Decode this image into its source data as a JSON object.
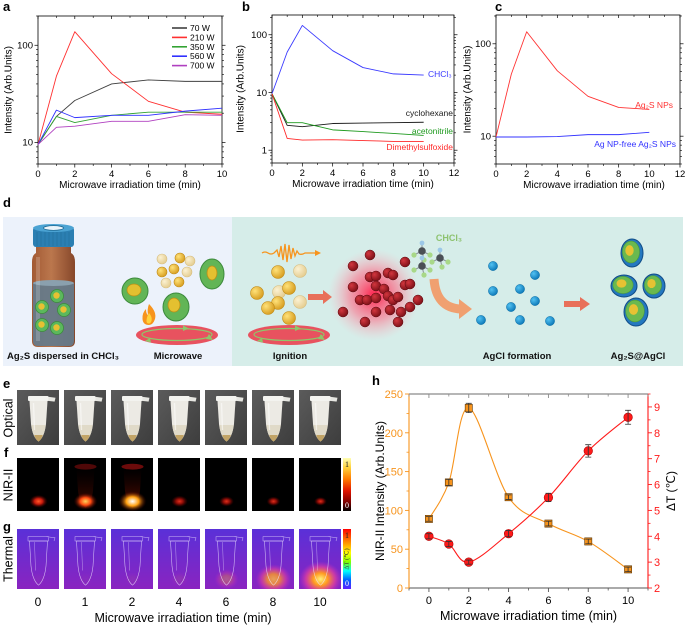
{
  "panel_labels": {
    "a": "a",
    "b": "b",
    "c": "c",
    "d": "d",
    "e": "e",
    "f": "f",
    "g": "g",
    "h": "h"
  },
  "chart_data": [
    {
      "panel": "a",
      "type": "line",
      "x": [
        0,
        1,
        2,
        4,
        6,
        8,
        10
      ],
      "xlabel": "Microwave irradiation time (min)",
      "ylabel": "Intensity (Arb.Units)",
      "xlim": [
        0,
        10
      ],
      "xticks": [
        0,
        2,
        4,
        6,
        8,
        10
      ],
      "yscale": "log",
      "ylim": [
        6,
        200
      ],
      "yticks": [
        10,
        100
      ],
      "grid": false,
      "legend": "top-right",
      "series": [
        {
          "name": "70 W",
          "color": "#404040",
          "values": [
            9.5,
            18.5,
            27,
            40,
            44,
            42.5,
            42.5
          ]
        },
        {
          "name": "210 W",
          "color": "#ff3030",
          "values": [
            9.5,
            48,
            138,
            51,
            26.5,
            20.5,
            19.5
          ]
        },
        {
          "name": "350 W",
          "color": "#33a333",
          "values": [
            9.5,
            18.5,
            16,
            19,
            20.5,
            20.5,
            20.5
          ]
        },
        {
          "name": "560 W",
          "color": "#3030ff",
          "values": [
            9.5,
            21.5,
            18,
            19,
            19,
            21,
            22.5
          ]
        },
        {
          "name": "700 W",
          "color": "#b040c0",
          "values": [
            9.5,
            14.3,
            14.7,
            16.5,
            16.5,
            19.3,
            19
          ]
        }
      ]
    },
    {
      "panel": "b",
      "type": "line",
      "x": [
        0,
        1,
        2,
        4,
        6,
        8,
        10
      ],
      "xlabel": "Microwave irradiation time (min)",
      "ylabel": "Intensity (Arb.Units)",
      "xlim": [
        0,
        12
      ],
      "xticks": [
        0,
        2,
        4,
        6,
        8,
        10,
        12
      ],
      "yscale": "log",
      "ylim": [
        0.6,
        220
      ],
      "yticks": [
        1,
        10,
        100
      ],
      "grid": false,
      "legend": "inline labels at right end of each line",
      "series": [
        {
          "name": "CHCl₃",
          "color": "#3a3aff",
          "values": [
            9.5,
            50,
            145,
            53,
            27,
            21,
            20
          ]
        },
        {
          "name": "cyclohexane",
          "color": "#1a1a1a",
          "values": [
            9.5,
            2.7,
            2.55,
            2.9,
            2.95,
            3.0,
            3.05
          ]
        },
        {
          "name": "acetonitrile",
          "color": "#1f9a1f",
          "values": [
            9.5,
            3.0,
            3.0,
            2.25,
            2.1,
            1.95,
            1.8
          ]
        },
        {
          "name": "Dimethylsulfoxide",
          "color": "#ff2a2a",
          "values": [
            9.5,
            1.6,
            1.5,
            1.52,
            1.47,
            1.42,
            1.42
          ]
        }
      ]
    },
    {
      "panel": "c",
      "type": "line",
      "x": [
        0,
        1,
        2,
        4,
        6,
        8,
        10
      ],
      "xlabel": "Microwave irradiation time (min)",
      "ylabel": "Intensity (Arb.Units)",
      "xlim": [
        0,
        12
      ],
      "xticks": [
        0,
        2,
        4,
        6,
        8,
        10,
        12
      ],
      "yscale": "log",
      "ylim": [
        5,
        205
      ],
      "yticks": [
        10,
        100
      ],
      "grid": false,
      "legend": "inline labels at right end of each line",
      "series": [
        {
          "name": "Ag₂S NPs",
          "color": "#ff3333",
          "values": [
            9.8,
            47,
            135,
            51,
            27,
            20.5,
            19.5
          ]
        },
        {
          "name": "Ag NP-free Ag₂S NPs",
          "color": "#3333ff",
          "values": [
            9.8,
            9.8,
            9.8,
            9.9,
            10.4,
            10.4,
            11
          ]
        }
      ]
    },
    {
      "panel": "h",
      "type": "line",
      "x": [
        0,
        1,
        2,
        4,
        6,
        8,
        10
      ],
      "xlabel": "Microwave irradiation time (min)",
      "xlim": [
        -1,
        11
      ],
      "xticks": [
        0,
        2,
        4,
        6,
        8,
        10
      ],
      "grid": false,
      "y_left": {
        "label": "NIR-II Intensity (Arb.Units)",
        "lim": [
          0,
          250
        ],
        "ticks": [
          0,
          50,
          100,
          150,
          200,
          250
        ],
        "color": "#f7941d"
      },
      "y_right": {
        "label": "ΔT (℃)",
        "lim": [
          2,
          9.5
        ],
        "ticks": [
          2,
          3,
          4,
          5,
          6,
          7,
          8,
          9
        ],
        "color": "#ff1a1a"
      },
      "series": [
        {
          "name": "NIR-II Intensity",
          "axis": "left",
          "marker": "square",
          "color": "#f7941d",
          "values": [
            89,
            136,
            232,
            117,
            83,
            60,
            24
          ],
          "errors": [
            3,
            4,
            6,
            3,
            3,
            3,
            3
          ]
        },
        {
          "name": "ΔT",
          "axis": "right",
          "marker": "circle",
          "color": "#ff1a1a",
          "values": [
            4.0,
            3.7,
            3.0,
            4.1,
            5.5,
            7.3,
            8.6
          ],
          "errors": [
            0.1,
            0.1,
            0.08,
            0.12,
            0.16,
            0.24,
            0.27
          ]
        }
      ]
    }
  ],
  "schematic": {
    "steps": [
      {
        "label": "Ag₂S dispersed in CHCl₃"
      },
      {
        "label": "Microwave"
      },
      {
        "label": "Ignition"
      },
      {
        "label": "AgCl formation"
      },
      {
        "label": "Ag₂S@AgCl"
      }
    ],
    "reagent_label": "CHCl₃"
  },
  "imaging": {
    "rows": [
      {
        "label": "Optical"
      },
      {
        "label": "NIR-II"
      },
      {
        "label": "Thermal"
      }
    ],
    "times": [
      "0",
      "1",
      "2",
      "4",
      "6",
      "8",
      "10"
    ],
    "xlabel": "Microwave irradiation time (min)",
    "nir_relative_signal": [
      0.45,
      0.75,
      1.0,
      0.35,
      0.25,
      0.2,
      0.15
    ],
    "thermal_relative_heat": [
      0.03,
      0.03,
      0.05,
      0.08,
      0.3,
      0.7,
      0.95
    ],
    "nir_colorbar": {
      "max": "1",
      "min": "0"
    },
    "thermal_colorbar": {
      "max": "1",
      "label": "ΔT (℃)",
      "min": "0"
    }
  }
}
